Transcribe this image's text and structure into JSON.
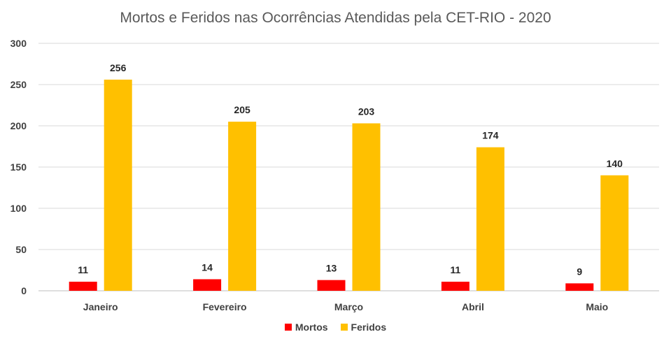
{
  "chart_data": {
    "type": "bar",
    "title": "Mortos e Feridos nas Ocorrências Atendidas pela CET-RIO - 2020",
    "categories": [
      "Janeiro",
      "Fevereiro",
      "Março",
      "Abril",
      "Maio"
    ],
    "series": [
      {
        "name": "Mortos",
        "values": [
          11,
          14,
          13,
          11,
          9
        ],
        "color": "#ff0000"
      },
      {
        "name": "Feridos",
        "values": [
          256,
          205,
          203,
          174,
          140
        ],
        "color": "#ffc000"
      }
    ],
    "ylim": [
      0,
      300
    ],
    "yticks": [
      0,
      50,
      100,
      150,
      200,
      250,
      300
    ],
    "grid": true,
    "legend_position": "bottom",
    "data_labels": true
  }
}
